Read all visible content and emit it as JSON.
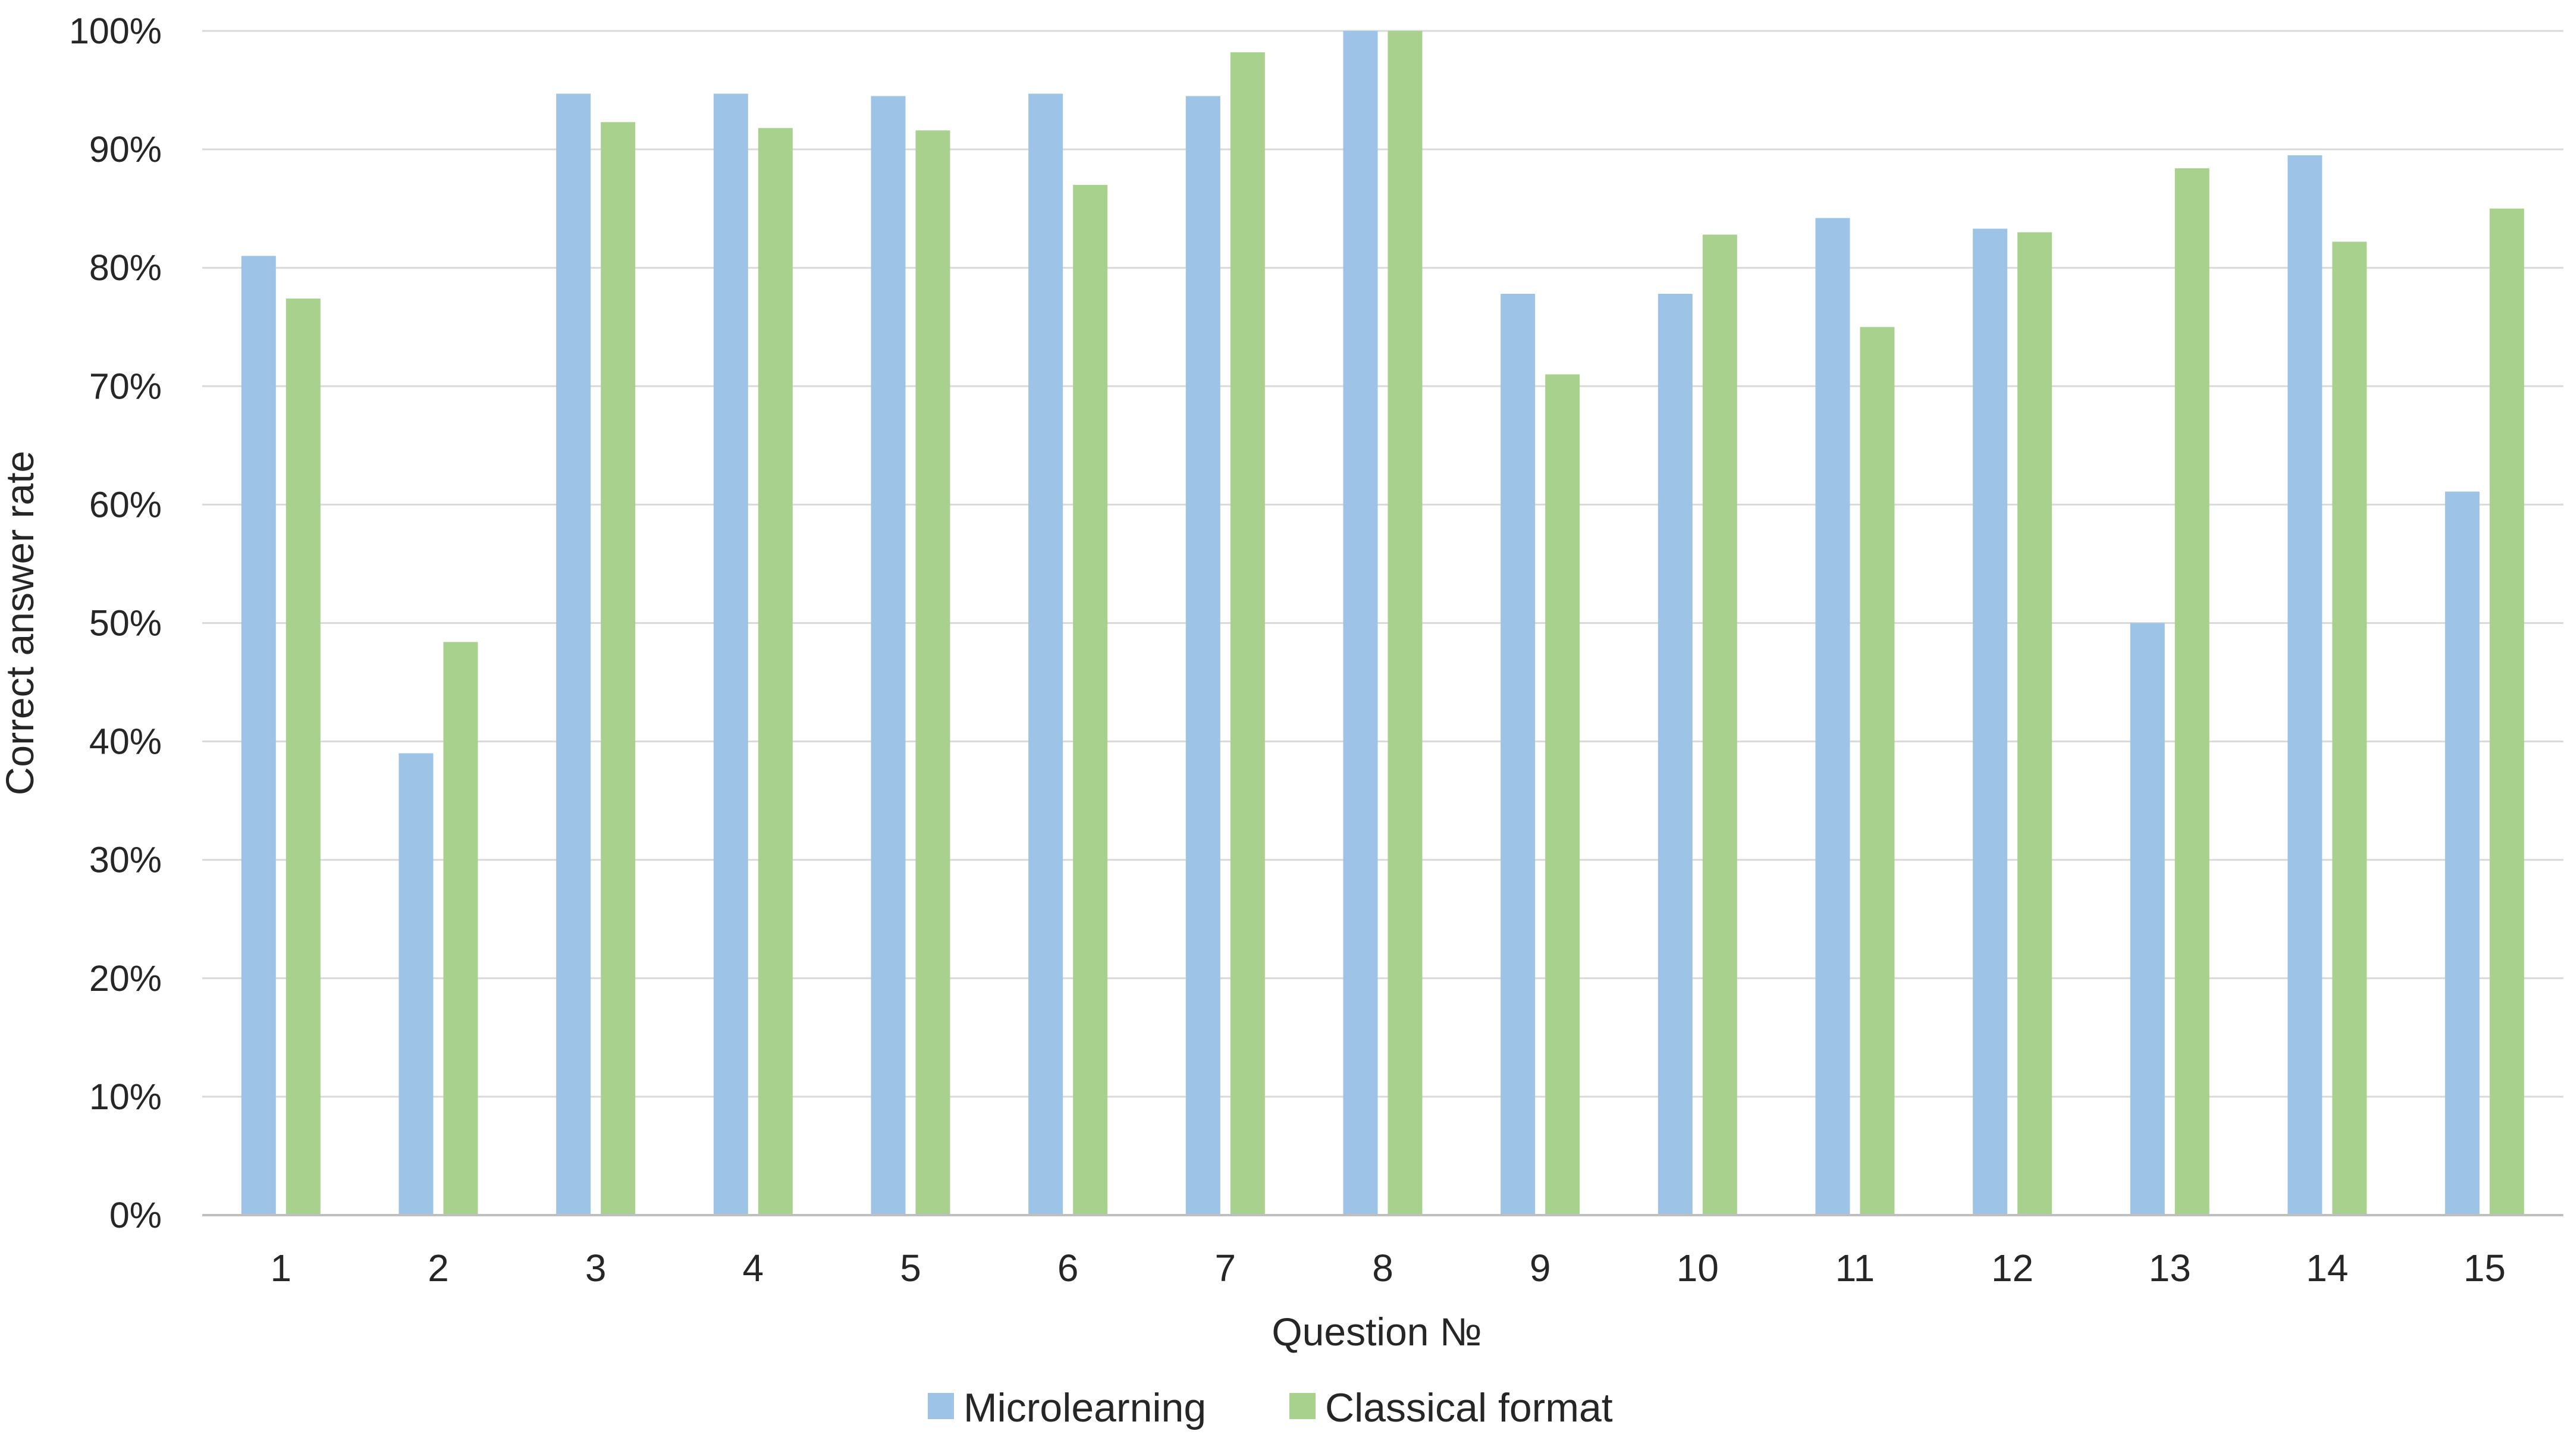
{
  "chart_data": {
    "type": "bar",
    "title": "",
    "xlabel": "Question №",
    "ylabel": "Correct answer rate",
    "ylim": [
      0,
      100
    ],
    "yticks": [
      "0%",
      "10%",
      "20%",
      "30%",
      "40%",
      "50%",
      "60%",
      "70%",
      "80%",
      "90%",
      "100%"
    ],
    "grid": true,
    "legend_position": "bottom",
    "categories": [
      "1",
      "2",
      "3",
      "4",
      "5",
      "6",
      "7",
      "8",
      "9",
      "10",
      "11",
      "12",
      "13",
      "14",
      "15"
    ],
    "series": [
      {
        "name": "Microlearning",
        "color": "#9DC3E6",
        "values": [
          81,
          39,
          94.7,
          94.7,
          94.5,
          94.7,
          94.5,
          100,
          77.8,
          77.8,
          84.2,
          83.3,
          50,
          89.5,
          61.1
        ]
      },
      {
        "name": "Classical format",
        "color": "#A9D18E",
        "values": [
          77.4,
          48.4,
          92.3,
          91.8,
          91.6,
          87,
          98.2,
          100,
          71,
          82.8,
          75,
          83,
          88.4,
          82.2,
          85
        ]
      }
    ]
  }
}
